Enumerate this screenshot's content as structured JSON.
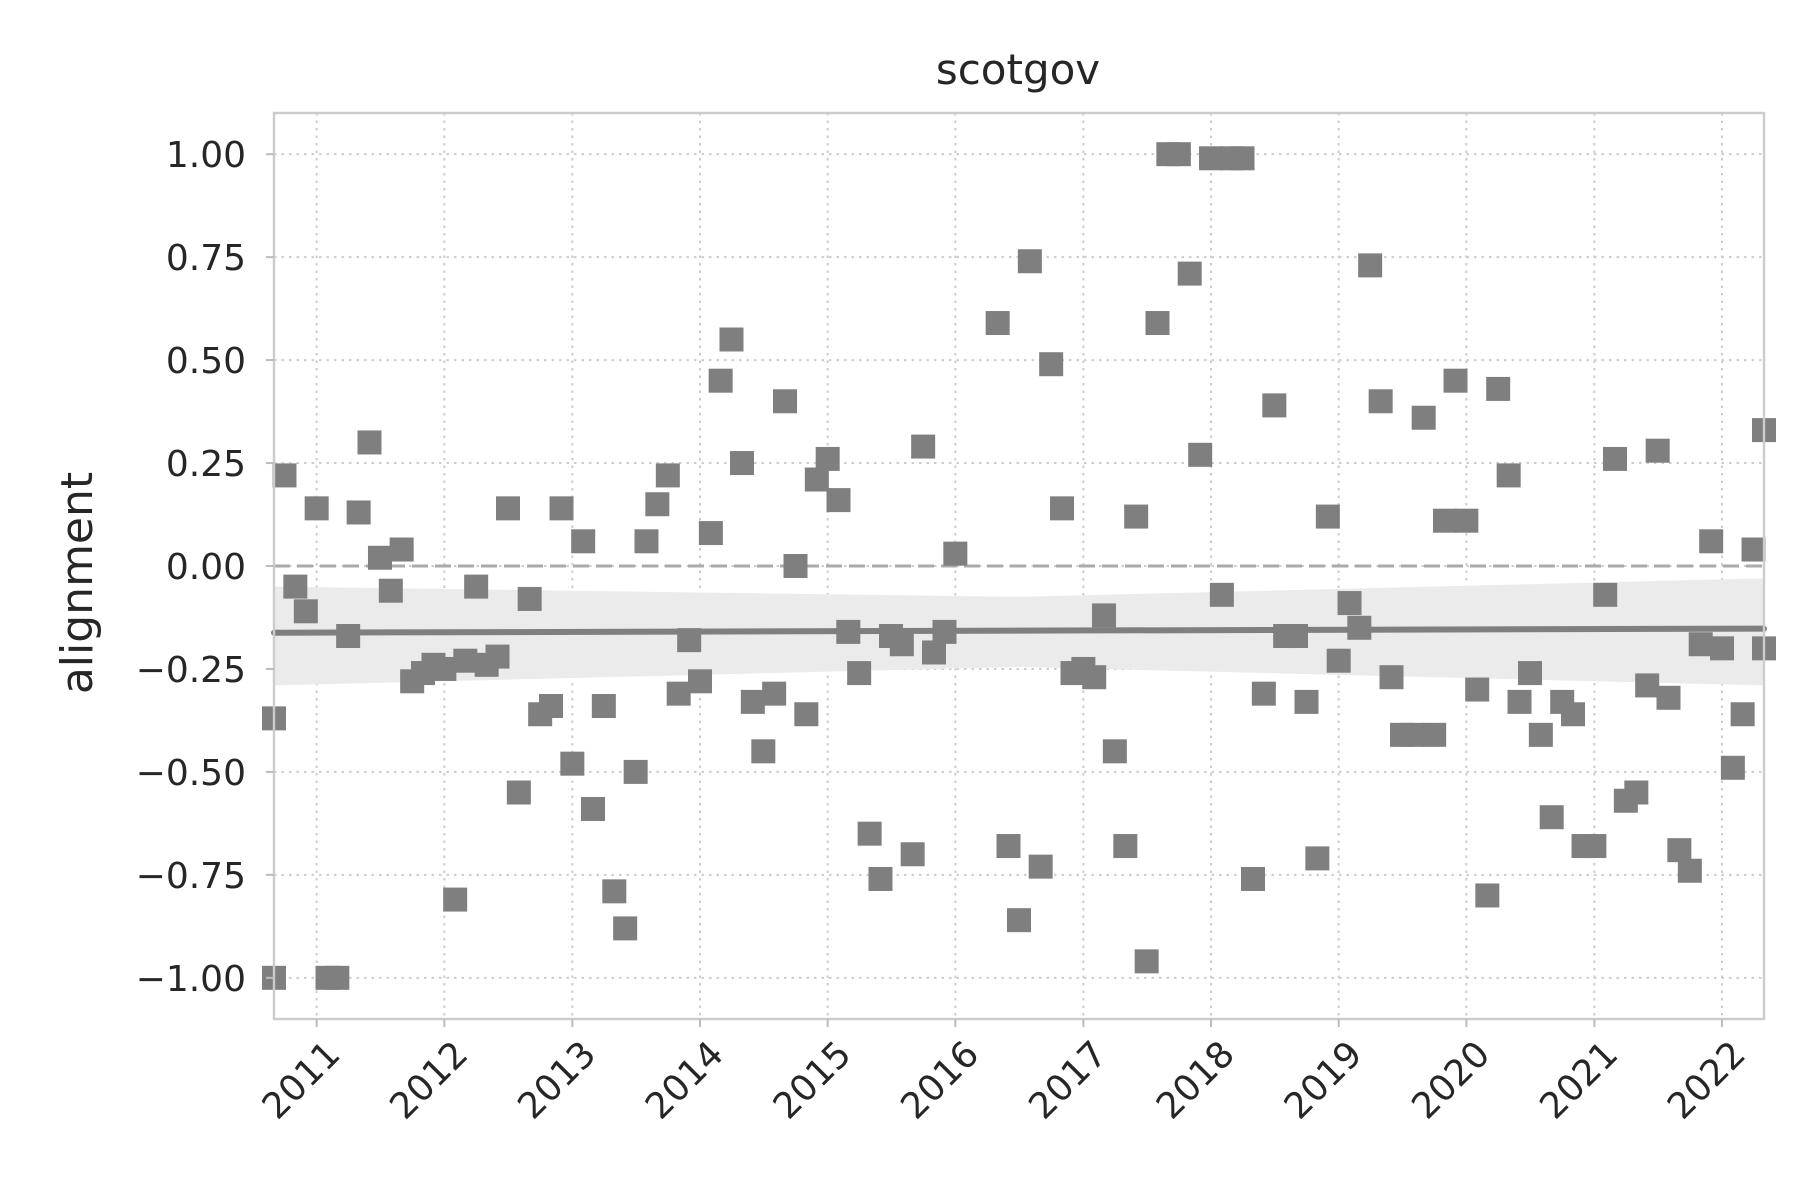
{
  "chart_data": {
    "type": "scatter",
    "title": "scotgov",
    "xlabel": "",
    "ylabel": "alignment",
    "x_ticks": [
      "2011",
      "2012",
      "2013",
      "2014",
      "2015",
      "2016",
      "2017",
      "2018",
      "2019",
      "2020",
      "2021",
      "2022"
    ],
    "y_ticks": [
      "1.00",
      "0.75",
      "0.50",
      "0.25",
      "0.00",
      "−0.25",
      "−0.50",
      "−0.75",
      "−1.00"
    ],
    "xlim": [
      "2010-09-01",
      "2022-05-01"
    ],
    "ylim": [
      -1.1,
      1.1
    ],
    "grid": true,
    "reference_line": 0.0,
    "marker": "square",
    "marker_color": "#7f7f7f",
    "trend": {
      "x": [
        "2010-09-01",
        "2022-05-01"
      ],
      "y": [
        -0.162,
        -0.152
      ],
      "band_lower": [
        -0.29,
        -0.29
      ],
      "band_upper": [
        -0.05,
        -0.03
      ],
      "color": "#7f7f7f"
    },
    "points": [
      {
        "x": "2010-09-01",
        "y": -0.37
      },
      {
        "x": "2010-09-01",
        "y": -1.0
      },
      {
        "x": "2010-10-01",
        "y": 0.22
      },
      {
        "x": "2010-11-01",
        "y": -0.05
      },
      {
        "x": "2010-12-01",
        "y": -0.11
      },
      {
        "x": "2011-01-01",
        "y": 0.14
      },
      {
        "x": "2011-02-01",
        "y": -1.0
      },
      {
        "x": "2011-03-01",
        "y": -1.0
      },
      {
        "x": "2011-04-01",
        "y": -0.17
      },
      {
        "x": "2011-05-01",
        "y": 0.13
      },
      {
        "x": "2011-06-01",
        "y": 0.3
      },
      {
        "x": "2011-07-01",
        "y": 0.02
      },
      {
        "x": "2011-08-01",
        "y": -0.06
      },
      {
        "x": "2011-09-01",
        "y": 0.04
      },
      {
        "x": "2011-10-01",
        "y": -0.28
      },
      {
        "x": "2011-11-01",
        "y": -0.26
      },
      {
        "x": "2011-12-01",
        "y": -0.24
      },
      {
        "x": "2012-01-01",
        "y": -0.25
      },
      {
        "x": "2012-02-01",
        "y": -0.81
      },
      {
        "x": "2012-03-01",
        "y": -0.23
      },
      {
        "x": "2012-04-01",
        "y": -0.05
      },
      {
        "x": "2012-05-01",
        "y": -0.24
      },
      {
        "x": "2012-06-01",
        "y": -0.22
      },
      {
        "x": "2012-07-01",
        "y": 0.14
      },
      {
        "x": "2012-08-01",
        "y": -0.55
      },
      {
        "x": "2012-09-01",
        "y": -0.08
      },
      {
        "x": "2012-10-01",
        "y": -0.36
      },
      {
        "x": "2012-11-01",
        "y": -0.34
      },
      {
        "x": "2012-12-01",
        "y": 0.14
      },
      {
        "x": "2013-01-01",
        "y": -0.48
      },
      {
        "x": "2013-02-01",
        "y": 0.06
      },
      {
        "x": "2013-03-01",
        "y": -0.59
      },
      {
        "x": "2013-04-01",
        "y": -0.34
      },
      {
        "x": "2013-05-01",
        "y": -0.79
      },
      {
        "x": "2013-06-01",
        "y": -0.88
      },
      {
        "x": "2013-07-01",
        "y": -0.5
      },
      {
        "x": "2013-08-01",
        "y": 0.06
      },
      {
        "x": "2013-09-01",
        "y": 0.15
      },
      {
        "x": "2013-10-01",
        "y": 0.22
      },
      {
        "x": "2013-11-01",
        "y": -0.31
      },
      {
        "x": "2013-12-01",
        "y": -0.18
      },
      {
        "x": "2014-01-01",
        "y": -0.28
      },
      {
        "x": "2014-02-01",
        "y": 0.08
      },
      {
        "x": "2014-03-01",
        "y": 0.45
      },
      {
        "x": "2014-04-01",
        "y": 0.55
      },
      {
        "x": "2014-05-01",
        "y": 0.25
      },
      {
        "x": "2014-06-01",
        "y": -0.33
      },
      {
        "x": "2014-07-01",
        "y": -0.45
      },
      {
        "x": "2014-08-01",
        "y": -0.31
      },
      {
        "x": "2014-09-01",
        "y": 0.4
      },
      {
        "x": "2014-10-01",
        "y": 0.0
      },
      {
        "x": "2014-11-01",
        "y": -0.36
      },
      {
        "x": "2014-12-01",
        "y": 0.21
      },
      {
        "x": "2015-01-01",
        "y": 0.26
      },
      {
        "x": "2015-02-01",
        "y": 0.16
      },
      {
        "x": "2015-03-01",
        "y": -0.16
      },
      {
        "x": "2015-04-01",
        "y": -0.26
      },
      {
        "x": "2015-05-01",
        "y": -0.65
      },
      {
        "x": "2015-06-01",
        "y": -0.76
      },
      {
        "x": "2015-07-01",
        "y": -0.17
      },
      {
        "x": "2015-08-01",
        "y": -0.19
      },
      {
        "x": "2015-09-01",
        "y": -0.7
      },
      {
        "x": "2015-10-01",
        "y": 0.29
      },
      {
        "x": "2015-11-01",
        "y": -0.21
      },
      {
        "x": "2015-12-01",
        "y": -0.16
      },
      {
        "x": "2016-01-01",
        "y": 0.03
      },
      {
        "x": "2016-05-01",
        "y": 0.59
      },
      {
        "x": "2016-06-01",
        "y": -0.68
      },
      {
        "x": "2016-07-01",
        "y": -0.86
      },
      {
        "x": "2016-08-01",
        "y": 0.74
      },
      {
        "x": "2016-09-01",
        "y": -0.73
      },
      {
        "x": "2016-10-01",
        "y": 0.49
      },
      {
        "x": "2016-11-01",
        "y": 0.14
      },
      {
        "x": "2016-12-01",
        "y": -0.26
      },
      {
        "x": "2017-01-01",
        "y": -0.25
      },
      {
        "x": "2017-02-01",
        "y": -0.27
      },
      {
        "x": "2017-03-01",
        "y": -0.12
      },
      {
        "x": "2017-04-01",
        "y": -0.45
      },
      {
        "x": "2017-05-01",
        "y": -0.68
      },
      {
        "x": "2017-06-01",
        "y": 0.12
      },
      {
        "x": "2017-07-01",
        "y": -0.96
      },
      {
        "x": "2017-08-01",
        "y": 0.59
      },
      {
        "x": "2017-09-01",
        "y": 1.0
      },
      {
        "x": "2017-10-01",
        "y": 1.0
      },
      {
        "x": "2017-11-01",
        "y": 0.71
      },
      {
        "x": "2017-12-01",
        "y": 0.27
      },
      {
        "x": "2018-01-01",
        "y": 0.99
      },
      {
        "x": "2018-02-01",
        "y": -0.07
      },
      {
        "x": "2018-03-01",
        "y": 0.99
      },
      {
        "x": "2018-04-01",
        "y": 0.99
      },
      {
        "x": "2018-05-01",
        "y": -0.76
      },
      {
        "x": "2018-06-01",
        "y": -0.31
      },
      {
        "x": "2018-07-01",
        "y": 0.39
      },
      {
        "x": "2018-08-01",
        "y": -0.17
      },
      {
        "x": "2018-09-01",
        "y": -0.17
      },
      {
        "x": "2018-10-01",
        "y": -0.33
      },
      {
        "x": "2018-11-01",
        "y": -0.71
      },
      {
        "x": "2018-12-01",
        "y": 0.12
      },
      {
        "x": "2019-01-01",
        "y": -0.23
      },
      {
        "x": "2019-02-01",
        "y": -0.09
      },
      {
        "x": "2019-03-01",
        "y": -0.15
      },
      {
        "x": "2019-04-01",
        "y": 0.73
      },
      {
        "x": "2019-05-01",
        "y": 0.4
      },
      {
        "x": "2019-06-01",
        "y": -0.27
      },
      {
        "x": "2019-07-01",
        "y": -0.41
      },
      {
        "x": "2019-08-01",
        "y": -0.41
      },
      {
        "x": "2019-09-01",
        "y": 0.36
      },
      {
        "x": "2019-10-01",
        "y": -0.41
      },
      {
        "x": "2019-11-01",
        "y": 0.11
      },
      {
        "x": "2019-12-01",
        "y": 0.45
      },
      {
        "x": "2020-01-01",
        "y": 0.11
      },
      {
        "x": "2020-02-01",
        "y": -0.3
      },
      {
        "x": "2020-03-01",
        "y": -0.8
      },
      {
        "x": "2020-04-01",
        "y": 0.43
      },
      {
        "x": "2020-05-01",
        "y": 0.22
      },
      {
        "x": "2020-06-01",
        "y": -0.33
      },
      {
        "x": "2020-07-01",
        "y": -0.26
      },
      {
        "x": "2020-08-01",
        "y": -0.41
      },
      {
        "x": "2020-09-01",
        "y": -0.61
      },
      {
        "x": "2020-10-01",
        "y": -0.33
      },
      {
        "x": "2020-11-01",
        "y": -0.36
      },
      {
        "x": "2020-12-01",
        "y": -0.68
      },
      {
        "x": "2021-01-01",
        "y": -0.68
      },
      {
        "x": "2021-02-01",
        "y": -0.07
      },
      {
        "x": "2021-03-01",
        "y": 0.26
      },
      {
        "x": "2021-04-01",
        "y": -0.57
      },
      {
        "x": "2021-05-01",
        "y": -0.55
      },
      {
        "x": "2021-06-01",
        "y": -0.29
      },
      {
        "x": "2021-07-01",
        "y": 0.28
      },
      {
        "x": "2021-08-01",
        "y": -0.32
      },
      {
        "x": "2021-09-01",
        "y": -0.69
      },
      {
        "x": "2021-10-01",
        "y": -0.74
      },
      {
        "x": "2021-11-01",
        "y": -0.19
      },
      {
        "x": "2021-12-01",
        "y": 0.06
      },
      {
        "x": "2022-01-01",
        "y": -0.2
      },
      {
        "x": "2022-02-01",
        "y": -0.49
      },
      {
        "x": "2022-03-01",
        "y": -0.36
      },
      {
        "x": "2022-04-01",
        "y": 0.04
      },
      {
        "x": "2022-05-01",
        "y": -0.2
      },
      {
        "x": "2022-05-01",
        "y": 0.33
      }
    ]
  }
}
